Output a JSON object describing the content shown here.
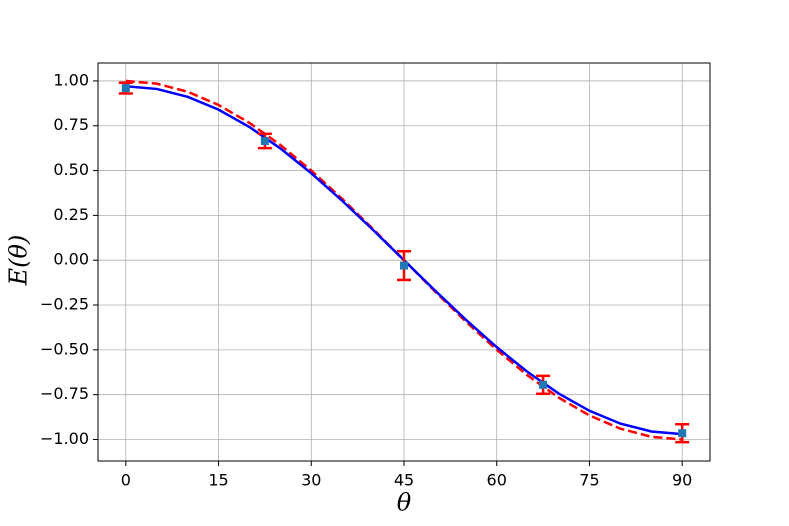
{
  "chart_data": {
    "type": "line",
    "xlabel": "θ",
    "ylabel": "E(θ)",
    "xlim": [
      -4.5,
      94.5
    ],
    "ylim": [
      -1.12,
      1.1
    ],
    "xticks": [
      0,
      15,
      30,
      45,
      60,
      75,
      90
    ],
    "yticks": [
      {
        "value": -1,
        "label": "−1.00"
      },
      {
        "value": -0.75,
        "label": "−0.75"
      },
      {
        "value": -0.5,
        "label": "−0.50"
      },
      {
        "value": -0.25,
        "label": "−0.25"
      },
      {
        "value": 0,
        "label": "0.00"
      },
      {
        "value": 0.25,
        "label": "0.25"
      },
      {
        "value": 0.5,
        "label": "0.50"
      },
      {
        "value": 0.75,
        "label": "0.75"
      },
      {
        "value": 1,
        "label": "1.00"
      }
    ],
    "grid": true,
    "curves": [
      {
        "color": "#ff0000",
        "dashed": true,
        "x": [
          0,
          5,
          10,
          15,
          20,
          25,
          30,
          35,
          40,
          45,
          50,
          55,
          60,
          65,
          70,
          75,
          80,
          85,
          90
        ],
        "values": [
          1,
          0.9848,
          0.9397,
          0.866,
          0.766,
          0.6428,
          0.5,
          0.342,
          0.1736,
          0,
          -0.1736,
          -0.342,
          -0.5,
          -0.6428,
          -0.766,
          -0.866,
          -0.9397,
          -0.9848,
          -1
        ]
      },
      {
        "color": "#0000ff",
        "dashed": false,
        "x": [
          0,
          5,
          10,
          15,
          20,
          25,
          30,
          35,
          40,
          45,
          50,
          55,
          60,
          65,
          70,
          75,
          80,
          85,
          90
        ],
        "values": [
          0.97,
          0.9553,
          0.9115,
          0.84,
          0.743,
          0.6235,
          0.485,
          0.3317,
          0.1684,
          0,
          -0.1684,
          -0.3317,
          -0.485,
          -0.6235,
          -0.743,
          -0.84,
          -0.9115,
          -0.9553,
          -0.97
        ]
      }
    ],
    "points": {
      "color": "#1f77b4",
      "error_color": "#ff0000",
      "x": [
        0,
        22.5,
        45,
        67.5,
        90
      ],
      "values": [
        0.96,
        0.665,
        -0.03,
        -0.695,
        -0.965
      ],
      "errors": [
        0.03,
        0.04,
        0.08,
        0.05,
        0.05
      ]
    }
  }
}
